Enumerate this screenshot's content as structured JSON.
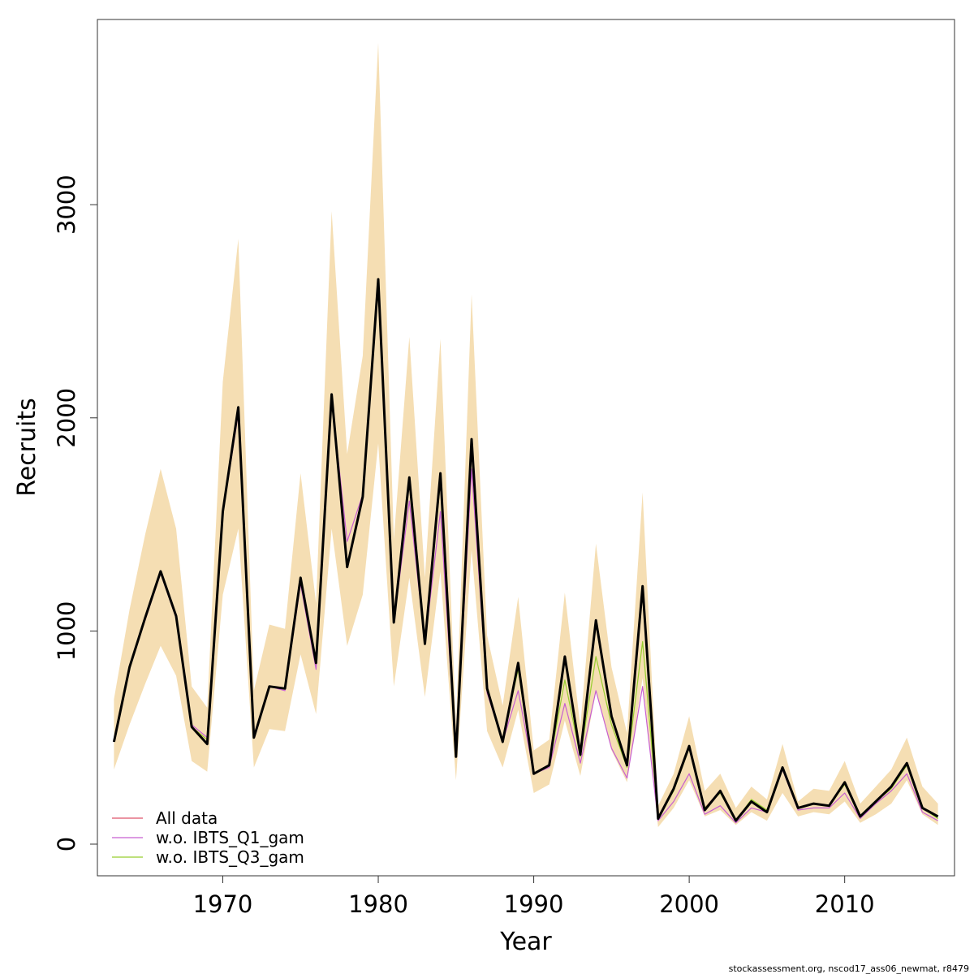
{
  "chart_data": {
    "type": "line",
    "xlabel": "Year",
    "ylabel": "Recruits",
    "xlim": [
      1963,
      2016
    ],
    "ylim": [
      0,
      3750
    ],
    "x_ticks": [
      1970,
      1980,
      1990,
      2000,
      2010
    ],
    "y_ticks": [
      0,
      1000,
      2000,
      3000
    ],
    "grid": false,
    "legend_position": "bottom-left",
    "x": [
      1963,
      1964,
      1965,
      1966,
      1967,
      1968,
      1969,
      1970,
      1971,
      1972,
      1973,
      1974,
      1975,
      1976,
      1977,
      1978,
      1979,
      1980,
      1981,
      1982,
      1983,
      1984,
      1985,
      1986,
      1987,
      1988,
      1989,
      1990,
      1991,
      1992,
      1993,
      1994,
      1995,
      1996,
      1997,
      1998,
      1999,
      2000,
      2001,
      2002,
      2003,
      2004,
      2005,
      2006,
      2007,
      2008,
      2009,
      2010,
      2011,
      2012,
      2013,
      2014,
      2015,
      2016
    ],
    "confidence_band": {
      "color": "#f5deb3",
      "upper": [
        680,
        1100,
        1450,
        1760,
        1480,
        740,
        640,
        2170,
        2840,
        720,
        1030,
        1010,
        1740,
        1130,
        2970,
        1830,
        2290,
        3760,
        1430,
        2380,
        1250,
        2370,
        560,
        2580,
        980,
        650,
        1160,
        440,
        490,
        1180,
        550,
        1410,
        830,
        520,
        1650,
        180,
        330,
        600,
        250,
        330,
        170,
        270,
        210,
        470,
        200,
        260,
        250,
        390,
        190,
        270,
        350,
        500,
        270,
        190
      ],
      "lower": [
        350,
        560,
        750,
        930,
        790,
        390,
        340,
        1170,
        1480,
        360,
        540,
        530,
        890,
        610,
        1480,
        930,
        1170,
        1880,
        740,
        1250,
        690,
        1280,
        300,
        1380,
        530,
        360,
        630,
        240,
        280,
        580,
        320,
        720,
        440,
        290,
        780,
        80,
        170,
        300,
        130,
        160,
        90,
        150,
        110,
        240,
        130,
        150,
        140,
        200,
        100,
        140,
        190,
        300,
        140,
        90
      ]
    },
    "series": [
      {
        "name": "All data",
        "color": "#df536b",
        "values": [
          480,
          830,
          1060,
          1280,
          1070,
          550,
          490,
          1560,
          2050,
          500,
          740,
          730,
          1250,
          840,
          2110,
          1300,
          1630,
          2650,
          1040,
          1720,
          940,
          1740,
          420,
          1900,
          730,
          490,
          850,
          330,
          370,
          880,
          420,
          1050,
          600,
          370,
          1210,
          120,
          260,
          460,
          170,
          250,
          110,
          200,
          150,
          360,
          170,
          190,
          180,
          290,
          130,
          200,
          270,
          380,
          170,
          130
        ]
      },
      {
        "name": "w.o. IBTS_Q1_gam",
        "color": "#c75fd1",
        "values": [
          480,
          830,
          1050,
          1270,
          1060,
          560,
          500,
          1550,
          2020,
          500,
          740,
          720,
          1220,
          820,
          2090,
          1420,
          1640,
          2640,
          1040,
          1610,
          940,
          1560,
          410,
          1760,
          710,
          480,
          720,
          330,
          360,
          660,
          380,
          720,
          450,
          310,
          740,
          110,
          200,
          330,
          140,
          180,
          100,
          170,
          150,
          350,
          160,
          170,
          170,
          240,
          120,
          190,
          250,
          330,
          150,
          110
        ]
      },
      {
        "name": "w.o. IBTS_Q3_gam",
        "color": "#97ce2f",
        "values": [
          480,
          830,
          1060,
          1280,
          1070,
          550,
          490,
          1560,
          2040,
          500,
          740,
          730,
          1240,
          850,
          2100,
          1310,
          1620,
          2630,
          1050,
          1710,
          960,
          1700,
          420,
          1880,
          720,
          490,
          820,
          330,
          370,
          770,
          410,
          880,
          560,
          360,
          950,
          120,
          250,
          450,
          170,
          240,
          110,
          210,
          160,
          360,
          170,
          190,
          180,
          280,
          130,
          200,
          260,
          370,
          170,
          120
        ]
      },
      {
        "name": "",
        "color": "#000000",
        "values": [
          480,
          830,
          1060,
          1280,
          1070,
          550,
          470,
          1560,
          2050,
          500,
          740,
          730,
          1250,
          850,
          2110,
          1300,
          1630,
          2650,
          1040,
          1720,
          940,
          1740,
          410,
          1900,
          730,
          480,
          850,
          330,
          370,
          880,
          420,
          1050,
          600,
          370,
          1210,
          120,
          260,
          460,
          160,
          250,
          110,
          200,
          150,
          360,
          170,
          190,
          180,
          290,
          130,
          200,
          270,
          380,
          170,
          130
        ]
      }
    ]
  },
  "footer": "stockassessment.org, nscod17_ass06_newmat, r8479"
}
